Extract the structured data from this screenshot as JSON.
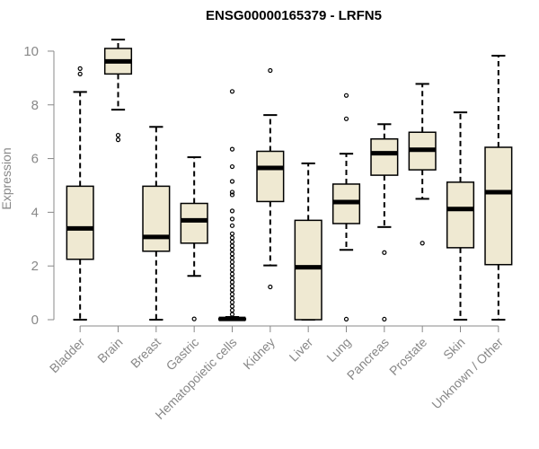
{
  "chart_data": {
    "type": "boxplot",
    "title": "ENSG00000165379 - LRFN5",
    "xlabel": "",
    "ylabel": "Expression",
    "ylim": [
      0,
      10.5
    ],
    "yticks": [
      0,
      2,
      4,
      6,
      8,
      10
    ],
    "grid": false,
    "categories": [
      "Bladder",
      "Brain",
      "Breast",
      "Gastric",
      "Hematopoietic cells",
      "Kidney",
      "Liver",
      "Lung",
      "Pancreas",
      "Prostate",
      "Skin",
      "Unknown / Other"
    ],
    "boxes": [
      {
        "whisker_low": 0.0,
        "q1": 2.25,
        "median": 3.4,
        "q3": 4.97,
        "whisker_high": 8.48,
        "outliers": [
          9.15,
          9.35
        ]
      },
      {
        "whisker_low": 7.82,
        "q1": 9.15,
        "median": 9.62,
        "q3": 10.1,
        "whisker_high": 10.43,
        "outliers": [
          6.7,
          6.87
        ]
      },
      {
        "whisker_low": 0.0,
        "q1": 2.55,
        "median": 3.08,
        "q3": 4.97,
        "whisker_high": 7.18,
        "outliers": []
      },
      {
        "whisker_low": 1.63,
        "q1": 2.85,
        "median": 3.7,
        "q3": 4.33,
        "whisker_high": 6.05,
        "outliers": [
          0.03
        ]
      },
      {
        "whisker_low": 0.0,
        "q1": 0.0,
        "median": 0.03,
        "q3": 0.05,
        "whisker_high": 0.1,
        "outliers": [
          0.2,
          0.35,
          0.5,
          0.65,
          0.8,
          0.95,
          1.1,
          1.25,
          1.4,
          1.55,
          1.7,
          1.85,
          2.0,
          2.15,
          2.3,
          2.45,
          2.6,
          2.75,
          2.9,
          3.05,
          3.2,
          3.5,
          3.75,
          4.05,
          4.65,
          4.75,
          5.15,
          5.7,
          6.35,
          8.5
        ]
      },
      {
        "whisker_low": 2.02,
        "q1": 4.4,
        "median": 5.65,
        "q3": 6.27,
        "whisker_high": 7.62,
        "outliers": [
          1.22,
          9.28
        ]
      },
      {
        "whisker_low": 0.0,
        "q1": 0.0,
        "median": 1.95,
        "q3": 3.7,
        "whisker_high": 5.82,
        "outliers": []
      },
      {
        "whisker_low": 2.6,
        "q1": 3.58,
        "median": 4.38,
        "q3": 5.05,
        "whisker_high": 6.18,
        "outliers": [
          0.02,
          7.48,
          8.35
        ]
      },
      {
        "whisker_low": 3.45,
        "q1": 5.38,
        "median": 6.2,
        "q3": 6.73,
        "whisker_high": 7.28,
        "outliers": [
          0.02,
          2.5
        ]
      },
      {
        "whisker_low": 4.5,
        "q1": 5.58,
        "median": 6.33,
        "q3": 6.98,
        "whisker_high": 8.78,
        "outliers": [
          2.85
        ]
      },
      {
        "whisker_low": 0.0,
        "q1": 2.68,
        "median": 4.12,
        "q3": 5.12,
        "whisker_high": 7.72,
        "outliers": []
      },
      {
        "whisker_low": 0.0,
        "q1": 2.05,
        "median": 4.75,
        "q3": 6.42,
        "whisker_high": 9.83,
        "outliers": []
      }
    ],
    "colors": {
      "box_fill": "#efe9d2",
      "line": "#000000",
      "axis_text": "#888888",
      "axis_line": "#888888"
    }
  }
}
